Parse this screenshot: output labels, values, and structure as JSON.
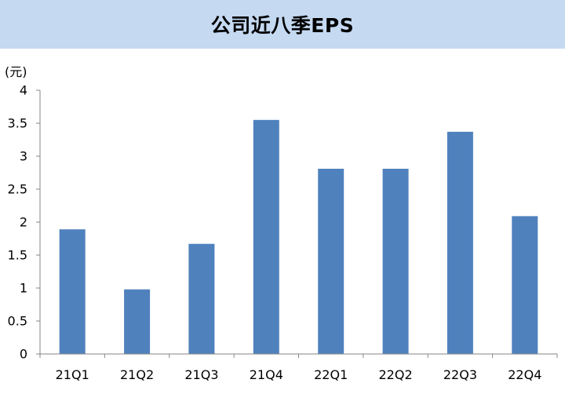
{
  "title": "公司近八季EPS",
  "unit_label": "(元)",
  "colors": {
    "title_background": "#c5d9f1",
    "bar": "#4f81bd",
    "axis": "#868686"
  },
  "chart_data": {
    "type": "bar",
    "title": "公司近八季EPS",
    "ylabel": "(元)",
    "xlabel": "",
    "categories": [
      "21Q1",
      "21Q2",
      "21Q3",
      "21Q4",
      "22Q1",
      "22Q2",
      "22Q3",
      "22Q4"
    ],
    "values": [
      1.89,
      0.98,
      1.67,
      3.55,
      2.81,
      2.81,
      3.37,
      2.09
    ],
    "ylim": [
      0,
      4
    ],
    "yticks": [
      "0",
      "0.5",
      "1",
      "1.5",
      "2",
      "2.5",
      "3",
      "3.5",
      "4"
    ],
    "grid": false,
    "legend": "none"
  }
}
